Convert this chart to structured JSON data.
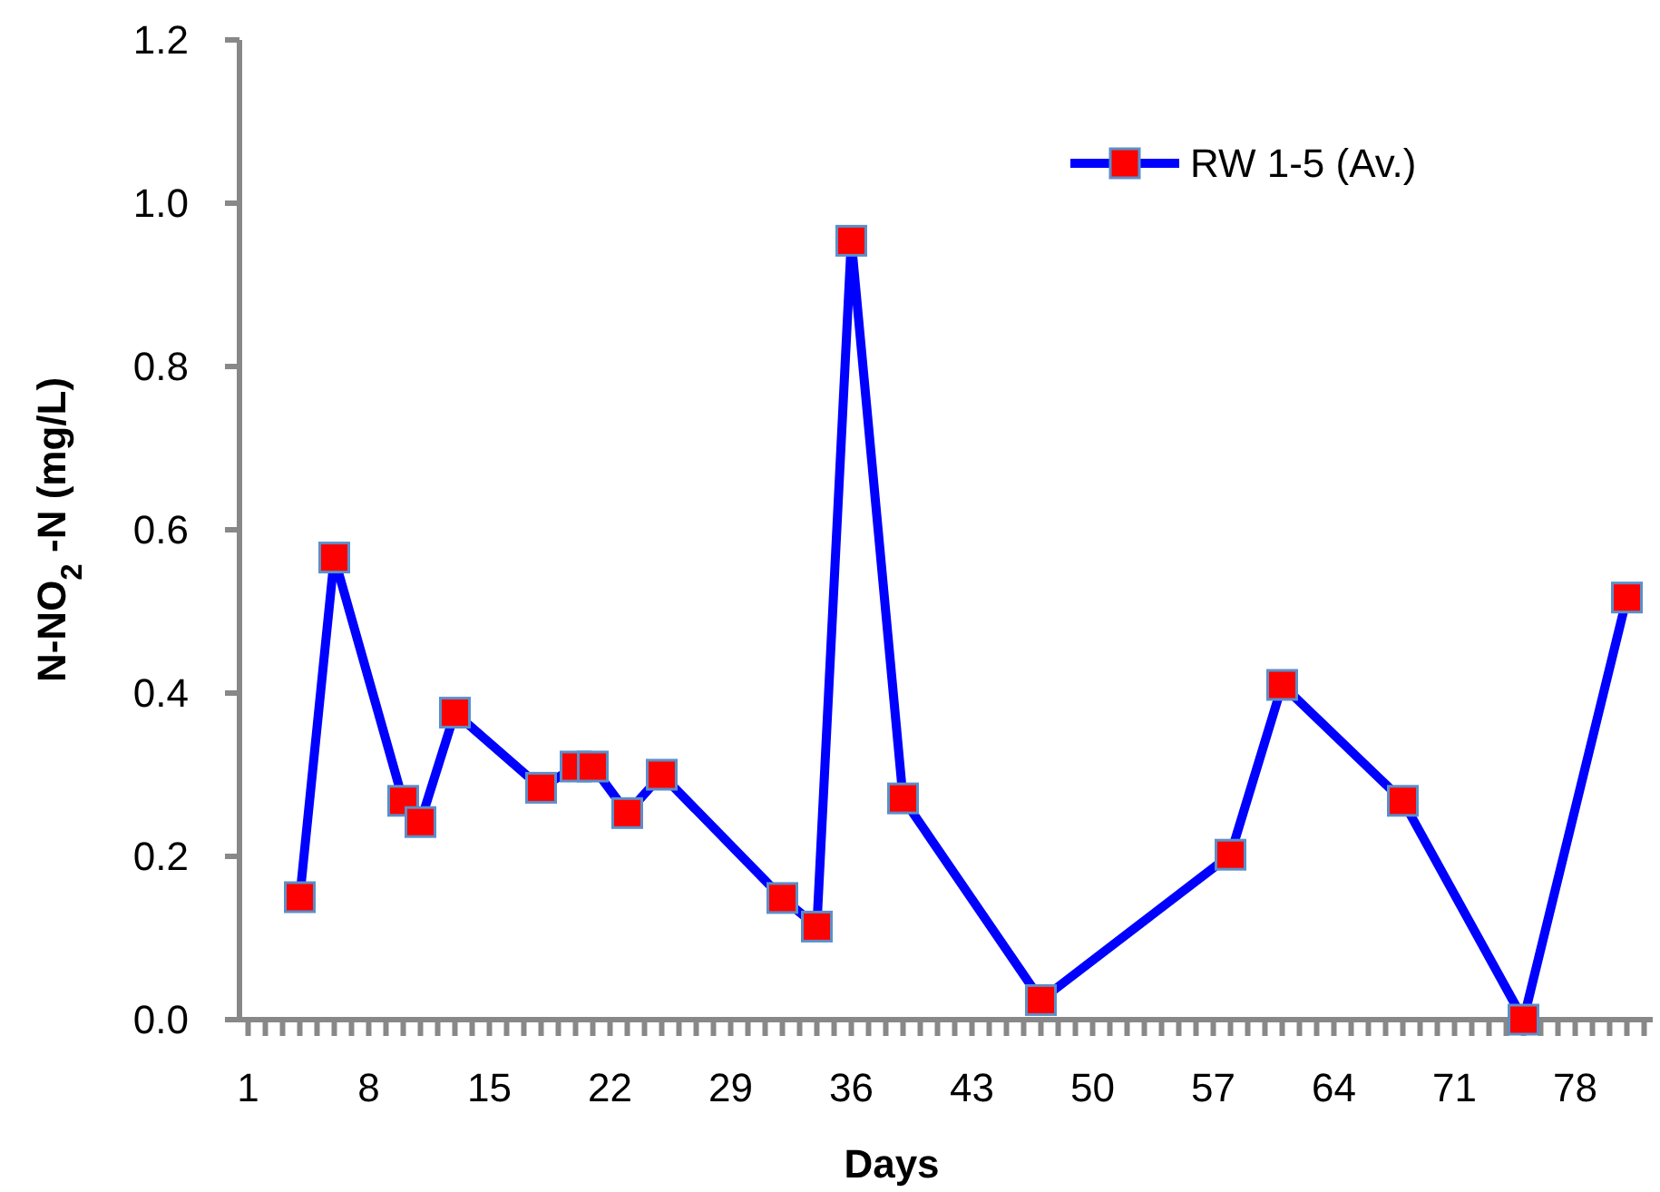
{
  "chart_data": {
    "type": "line",
    "xlabel": "Days",
    "ylabel": "N-NO$_{2}$ -N (mg/L)",
    "x": [
      4,
      6,
      10,
      11,
      13,
      18,
      20,
      21,
      23,
      25,
      32,
      34,
      36,
      39,
      47,
      58,
      61,
      68,
      75,
      81
    ],
    "series": [
      {
        "name": "RW 1-5 (Av.)",
        "color": "#0000ff",
        "values": [
          0.15,
          0.566,
          0.268,
          0.242,
          0.376,
          0.284,
          0.31,
          0.31,
          0.253,
          0.3,
          0.149,
          0.114,
          0.954,
          0.271,
          0.024,
          0.202,
          0.41,
          0.268,
          0,
          0.517
        ]
      }
    ],
    "marker": "square",
    "line_style": "solid",
    "legend": "top right",
    "grid": false,
    "xlim": [
      0.5,
      82.5
    ],
    "xticks": [
      1,
      {
        "value": 2,
        "label": null
      },
      {
        "value": 3,
        "label": null
      },
      {
        "value": 4,
        "label": null
      },
      {
        "value": 5,
        "label": null
      },
      {
        "value": 6,
        "label": null
      },
      {
        "value": 7,
        "label": null
      },
      8,
      {
        "value": 9,
        "label": null
      },
      {
        "value": 10,
        "label": null
      },
      {
        "value": 11,
        "label": null
      },
      {
        "value": 12,
        "label": null
      },
      {
        "value": 13,
        "label": null
      },
      {
        "value": 14,
        "label": null
      },
      15,
      {
        "value": 16,
        "label": null
      },
      {
        "value": 17,
        "label": null
      },
      {
        "value": 18,
        "label": null
      },
      {
        "value": 19,
        "label": null
      },
      {
        "value": 20,
        "label": null
      },
      {
        "value": 21,
        "label": null
      },
      22,
      {
        "value": 23,
        "label": null
      },
      {
        "value": 24,
        "label": null
      },
      {
        "value": 25,
        "label": null
      },
      {
        "value": 26,
        "label": null
      },
      {
        "value": 27,
        "label": null
      },
      {
        "value": 28,
        "label": null
      },
      29,
      {
        "value": 30,
        "label": null
      },
      {
        "value": 31,
        "label": null
      },
      {
        "value": 32,
        "label": null
      },
      {
        "value": 33,
        "label": null
      },
      {
        "value": 34,
        "label": null
      },
      {
        "value": 35,
        "label": null
      },
      36,
      {
        "value": 37,
        "label": null
      },
      {
        "value": 38,
        "label": null
      },
      {
        "value": 39,
        "label": null
      },
      {
        "value": 40,
        "label": null
      },
      {
        "value": 41,
        "label": null
      },
      {
        "value": 42,
        "label": null
      },
      43,
      {
        "value": 44,
        "label": null
      },
      {
        "value": 45,
        "label": null
      },
      {
        "value": 46,
        "label": null
      },
      {
        "value": 47,
        "label": null
      },
      {
        "value": 48,
        "label": null
      },
      {
        "value": 49,
        "label": null
      },
      50,
      {
        "value": 51,
        "label": null
      },
      {
        "value": 52,
        "label": null
      },
      {
        "value": 53,
        "label": null
      },
      {
        "value": 54,
        "label": null
      },
      {
        "value": 55,
        "label": null
      },
      {
        "value": 56,
        "label": null
      },
      57,
      {
        "value": 58,
        "label": null
      },
      {
        "value": 59,
        "label": null
      },
      {
        "value": 60,
        "label": null
      },
      {
        "value": 61,
        "label": null
      },
      {
        "value": 62,
        "label": null
      },
      {
        "value": 63,
        "label": null
      },
      64,
      {
        "value": 65,
        "label": null
      },
      {
        "value": 66,
        "label": null
      },
      {
        "value": 67,
        "label": null
      },
      {
        "value": 68,
        "label": null
      },
      {
        "value": 69,
        "label": null
      },
      {
        "value": 70,
        "label": null
      },
      71,
      {
        "value": 72,
        "label": null
      },
      {
        "value": 73,
        "label": null
      },
      {
        "value": 74,
        "label": null
      },
      {
        "value": 75,
        "label": null
      },
      {
        "value": 76,
        "label": null
      },
      {
        "value": 77,
        "label": null
      },
      78,
      {
        "value": 79,
        "label": null
      },
      {
        "value": 80,
        "label": null
      },
      {
        "value": 81,
        "label": null
      },
      {
        "value": 82,
        "label": null
      }
    ],
    "ylim": [
      0,
      1.2
    ],
    "yticks": [
      {
        "value": 0,
        "label": "0.0"
      },
      {
        "value": 0.2,
        "label": "0.2"
      },
      {
        "value": 0.4,
        "label": "0.4"
      },
      {
        "value": 0.6,
        "label": "0.6"
      },
      {
        "value": 0.8,
        "label": "0.8"
      },
      {
        "value": 1,
        "label": "1.0"
      },
      {
        "value": 1.2,
        "label": "1.2"
      }
    ]
  }
}
